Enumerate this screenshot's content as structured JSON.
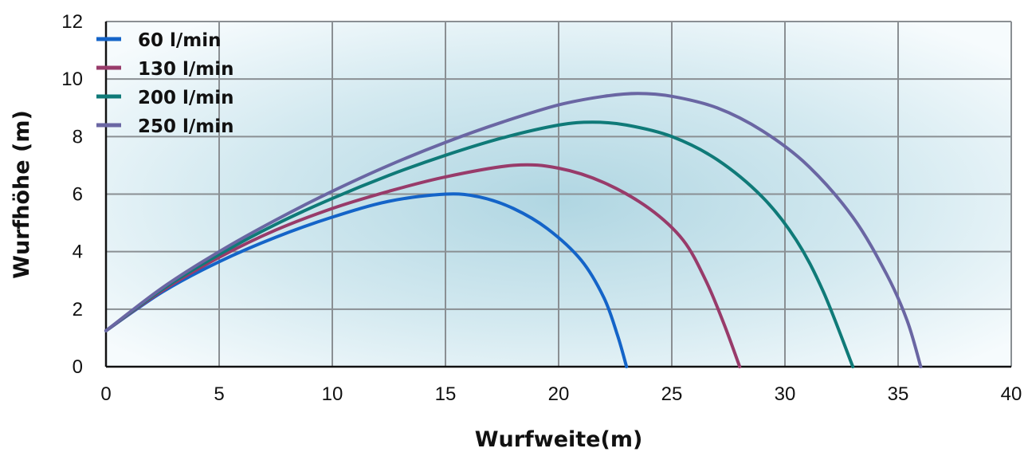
{
  "chart_data": {
    "type": "line",
    "xlabel": "Wurfweite(m)",
    "ylabel": "Wurfhöhe (m)",
    "xlim": [
      0,
      40
    ],
    "ylim": [
      0,
      12
    ],
    "xticks": [
      0,
      5,
      10,
      15,
      20,
      25,
      30,
      35,
      40
    ],
    "yticks": [
      0,
      2,
      4,
      6,
      8,
      10,
      12
    ],
    "grid": true,
    "legend_position": "top-left",
    "series": [
      {
        "name": "60 l/min",
        "color": "#1464c8",
        "points": [
          [
            0,
            1.25
          ],
          [
            2.5,
            2.6
          ],
          [
            5,
            3.65
          ],
          [
            7.5,
            4.5
          ],
          [
            10,
            5.2
          ],
          [
            12.5,
            5.75
          ],
          [
            15,
            6.0
          ],
          [
            16.5,
            5.9
          ],
          [
            18,
            5.5
          ],
          [
            19.5,
            4.8
          ],
          [
            21,
            3.7
          ],
          [
            22,
            2.4
          ],
          [
            22.6,
            1.1
          ],
          [
            23,
            0
          ]
        ]
      },
      {
        "name": "130 l/min",
        "color": "#983b6a",
        "points": [
          [
            0,
            1.25
          ],
          [
            2.5,
            2.65
          ],
          [
            5,
            3.8
          ],
          [
            7.5,
            4.75
          ],
          [
            10,
            5.5
          ],
          [
            12.5,
            6.1
          ],
          [
            15,
            6.6
          ],
          [
            18,
            7.0
          ],
          [
            20,
            6.9
          ],
          [
            22,
            6.4
          ],
          [
            24,
            5.5
          ],
          [
            25.5,
            4.4
          ],
          [
            26.5,
            3.0
          ],
          [
            27.3,
            1.5
          ],
          [
            28,
            0
          ]
        ]
      },
      {
        "name": "200 l/min",
        "color": "#0f7a78",
        "points": [
          [
            0,
            1.25
          ],
          [
            2.5,
            2.7
          ],
          [
            5,
            3.9
          ],
          [
            7.5,
            4.95
          ],
          [
            10,
            5.85
          ],
          [
            12.5,
            6.65
          ],
          [
            15,
            7.35
          ],
          [
            17.5,
            7.95
          ],
          [
            20,
            8.4
          ],
          [
            21.5,
            8.5
          ],
          [
            23,
            8.4
          ],
          [
            25,
            8.0
          ],
          [
            27,
            7.2
          ],
          [
            29,
            5.9
          ],
          [
            30.5,
            4.4
          ],
          [
            31.7,
            2.6
          ],
          [
            33,
            0
          ]
        ]
      },
      {
        "name": "250 l/min",
        "color": "#6a66a3",
        "points": [
          [
            0,
            1.25
          ],
          [
            2.5,
            2.75
          ],
          [
            5,
            4.0
          ],
          [
            7.5,
            5.1
          ],
          [
            10,
            6.1
          ],
          [
            12.5,
            7.0
          ],
          [
            15,
            7.8
          ],
          [
            17.5,
            8.5
          ],
          [
            20,
            9.1
          ],
          [
            22,
            9.4
          ],
          [
            23.5,
            9.5
          ],
          [
            25,
            9.4
          ],
          [
            27,
            9.0
          ],
          [
            29,
            8.2
          ],
          [
            31,
            7.0
          ],
          [
            33,
            5.2
          ],
          [
            34.5,
            3.2
          ],
          [
            35.4,
            1.6
          ],
          [
            36,
            0
          ]
        ]
      }
    ]
  }
}
